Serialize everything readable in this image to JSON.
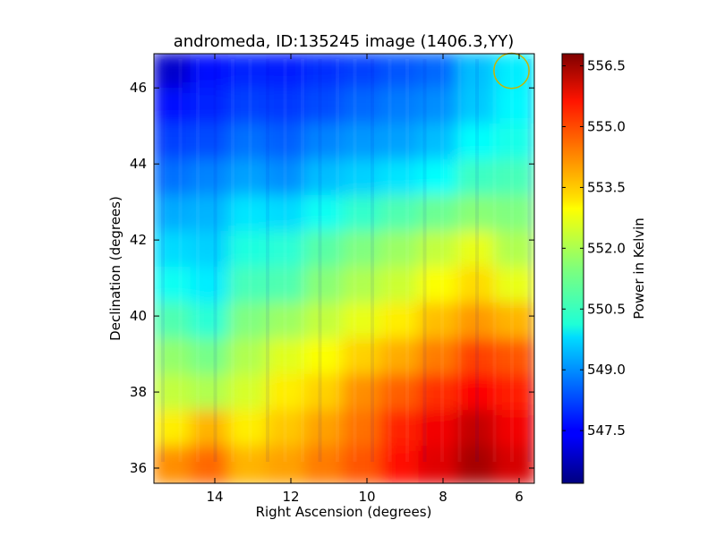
{
  "chart_data": {
    "type": "heatmap",
    "title": "andromeda, ID:135245 image (1406.3,YY)",
    "xlabel": "Right Ascension (degrees)",
    "ylabel": "Declination (degrees)",
    "xlim": [
      15.6,
      5.6
    ],
    "ylim": [
      35.6,
      46.9
    ],
    "x_ticks": [
      14,
      12,
      10,
      8,
      6
    ],
    "x_tick_labels": [
      "14",
      "12",
      "10",
      "8",
      "6"
    ],
    "y_ticks": [
      36,
      38,
      40,
      42,
      44,
      46
    ],
    "y_tick_labels": [
      "36",
      "38",
      "40",
      "42",
      "44",
      "46"
    ],
    "colorbar": {
      "label": "Power in Kelvin",
      "min": 546.2,
      "max": 556.8,
      "ticks": [
        547.5,
        549.0,
        550.5,
        552.0,
        553.5,
        555.0,
        556.5
      ],
      "tick_labels": [
        "547.5",
        "549.0",
        "550.5",
        "552.0",
        "553.5",
        "555.0",
        "556.5"
      ],
      "colormap": "jet"
    },
    "beam_marker": {
      "ra": 6.2,
      "dec": 46.45,
      "radius_deg": 0.33,
      "color": "#c8b400"
    },
    "grid": false,
    "value_grid": {
      "ra_columns": [
        15.3,
        14.3,
        13.3,
        12.3,
        11.3,
        10.3,
        9.3,
        8.3,
        7.3,
        6.3
      ],
      "dec_rows": [
        46.5,
        45.5,
        44.5,
        43.5,
        42.5,
        41.5,
        40.5,
        39.5,
        38.5,
        37.5,
        36.5,
        35.9
      ],
      "values": [
        [
          547.0,
          547.6,
          547.9,
          547.8,
          548.0,
          548.2,
          548.4,
          548.6,
          549.5,
          550.0
        ],
        [
          547.6,
          547.9,
          548.2,
          548.1,
          548.3,
          548.6,
          548.8,
          549.0,
          549.6,
          550.1
        ],
        [
          548.2,
          548.3,
          548.7,
          548.5,
          548.9,
          549.1,
          549.2,
          549.5,
          550.2,
          550.4
        ],
        [
          548.7,
          548.9,
          549.2,
          549.0,
          549.5,
          549.7,
          549.9,
          550.2,
          550.8,
          550.9
        ],
        [
          549.3,
          549.4,
          549.9,
          549.8,
          550.3,
          550.7,
          551.0,
          551.3,
          551.6,
          551.5
        ],
        [
          549.8,
          549.7,
          550.5,
          550.6,
          551.1,
          551.5,
          551.8,
          552.2,
          552.6,
          552.0
        ],
        [
          550.3,
          550.0,
          550.9,
          551.0,
          551.6,
          552.0,
          552.3,
          552.8,
          553.2,
          552.6
        ],
        [
          551.0,
          550.6,
          551.5,
          551.8,
          552.2,
          552.6,
          553.0,
          553.5,
          553.9,
          553.6
        ],
        [
          551.7,
          551.4,
          552.0,
          552.5,
          552.8,
          553.3,
          553.7,
          554.2,
          554.8,
          554.6
        ],
        [
          552.2,
          552.0,
          552.4,
          553.0,
          553.3,
          554.0,
          554.5,
          555.0,
          555.5,
          555.2
        ],
        [
          553.0,
          553.6,
          553.0,
          553.4,
          553.8,
          554.3,
          555.1,
          555.6,
          556.1,
          555.6
        ],
        [
          554.0,
          554.4,
          553.6,
          553.8,
          554.2,
          554.6,
          555.4,
          555.8,
          556.4,
          555.9
        ]
      ]
    }
  }
}
